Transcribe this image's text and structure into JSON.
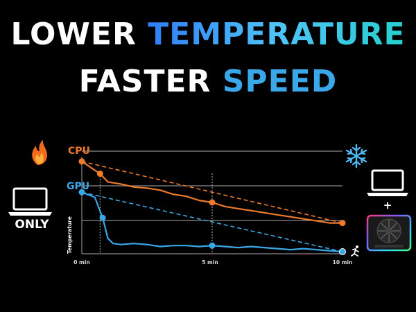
{
  "headline": {
    "line1_white": "LOWER ",
    "line1_gradient": "TEMPERATURE",
    "line2_white": "FASTER ",
    "line2_blue": "SPEED"
  },
  "left_panel": {
    "label": "ONLY"
  },
  "right_panel": {
    "plus": "+"
  },
  "icons": {
    "left": [
      "flame-icon",
      "laptop-icon"
    ],
    "right": [
      "snowflake-icon",
      "laptop-icon",
      "cooling-pad-icon",
      "running-figure-icon"
    ]
  },
  "colors": {
    "cpu": "#f07b2b",
    "gpu": "#3aa8e8",
    "grid": "#8a8a8a",
    "headline_blue": "#3aa8e8"
  },
  "chart_data": {
    "type": "line",
    "ylabel": "Temperature",
    "x_ticks": [
      "0 min",
      "5 min",
      "10 min"
    ],
    "xlim": [
      0,
      10
    ],
    "ylim": [
      0,
      100
    ],
    "grid": true,
    "series": [
      {
        "name": "CPU",
        "x": [
          0,
          0.7,
          1.0,
          1.5,
          2.0,
          2.5,
          3.0,
          3.5,
          4.0,
          4.5,
          5.0,
          5.5,
          6.0,
          6.5,
          7.0,
          7.5,
          8.0,
          8.5,
          9.0,
          9.5,
          10
        ],
        "values": [
          90,
          78,
          70,
          68,
          65,
          64,
          62,
          58,
          56,
          52,
          50,
          46,
          44,
          42,
          40,
          38,
          36,
          34,
          32,
          30,
          30
        ],
        "trend": [
          [
            0,
            90
          ],
          [
            10,
            30
          ]
        ]
      },
      {
        "name": "GPU",
        "x": [
          0,
          0.5,
          0.8,
          1.0,
          1.2,
          1.5,
          2.0,
          2.5,
          3.0,
          3.5,
          4.0,
          4.5,
          5.0,
          5.5,
          6.0,
          6.5,
          7.0,
          7.5,
          8.0,
          8.5,
          9.0,
          9.5,
          10
        ],
        "values": [
          60,
          55,
          35,
          15,
          10,
          9,
          10,
          9,
          7,
          8,
          8,
          7,
          8,
          7,
          6,
          7,
          6,
          5,
          4,
          5,
          4,
          3,
          2
        ],
        "trend": [
          [
            0,
            60
          ],
          [
            10,
            2
          ]
        ]
      }
    ]
  }
}
